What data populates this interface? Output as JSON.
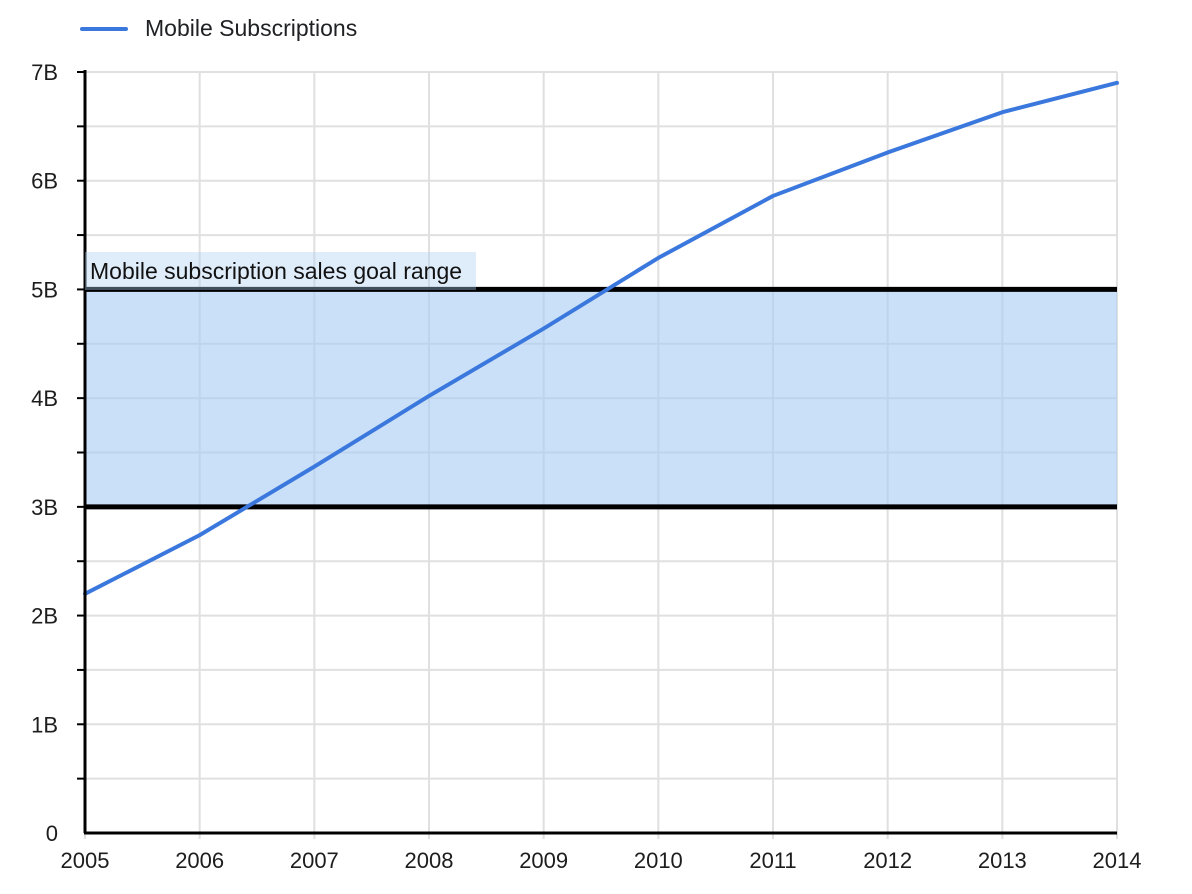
{
  "chart_data": {
    "type": "line",
    "title": "",
    "legend_position": "top-left",
    "x": [
      2005,
      2006,
      2007,
      2008,
      2009,
      2010,
      2011,
      2012,
      2013,
      2014
    ],
    "xticks": [
      "2005",
      "2006",
      "2007",
      "2008",
      "2009",
      "2010",
      "2011",
      "2012",
      "2013",
      "2014"
    ],
    "series": [
      {
        "name": "Mobile Subscriptions",
        "color": "#3b78dd",
        "values": [
          2.2,
          2.74,
          3.37,
          4.02,
          4.64,
          5.29,
          5.86,
          6.26,
          6.63,
          6.9
        ]
      }
    ],
    "ylim": [
      0,
      7
    ],
    "grid": true,
    "grid_step": 0.5,
    "yticks": [
      {
        "value": 0,
        "label": "0"
      },
      {
        "value": 1,
        "label": "1B"
      },
      {
        "value": 2,
        "label": "2B"
      },
      {
        "value": 3,
        "label": "3B"
      },
      {
        "value": 4,
        "label": "4B"
      },
      {
        "value": 5,
        "label": "5B"
      },
      {
        "value": 6,
        "label": "6B"
      },
      {
        "value": 7,
        "label": "7B"
      }
    ],
    "band": {
      "from": 3,
      "to": 5,
      "label": "Mobile subscription sales goal range",
      "fill": "#aacdf3",
      "fill_opacity": 0.62,
      "label_bg": "#aacdf3",
      "label_bg_opacity": 0.38,
      "border_color": "#000000"
    },
    "colors": {
      "grid": "#e0e0e0",
      "axis": "#000000",
      "text": "#1d1d1d"
    }
  }
}
